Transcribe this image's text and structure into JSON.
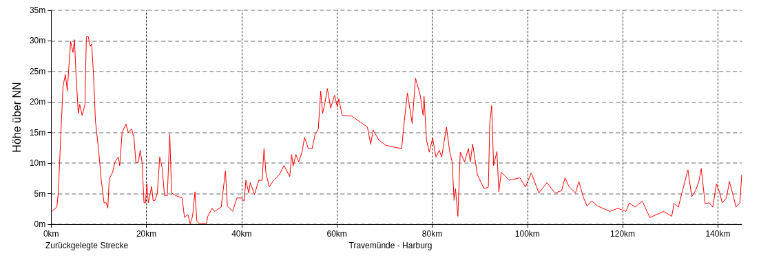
{
  "chart_data": {
    "type": "line",
    "title": "Travemünde - Harburg",
    "xlabel": "Zurückgelegte Strecke",
    "ylabel": "Höhe über NN",
    "xlim": [
      0,
      145
    ],
    "ylim": [
      0,
      35
    ],
    "xticks": [
      {
        "value": 0,
        "label": "0km"
      },
      {
        "value": 20,
        "label": "20km"
      },
      {
        "value": 40,
        "label": "40km"
      },
      {
        "value": 60,
        "label": "60km"
      },
      {
        "value": 80,
        "label": "80km"
      },
      {
        "value": 100,
        "label": "100km"
      },
      {
        "value": 120,
        "label": "120km"
      },
      {
        "value": 140,
        "label": "140km"
      }
    ],
    "yticks": [
      {
        "value": 0,
        "label": "0m"
      },
      {
        "value": 5,
        "label": "5m"
      },
      {
        "value": 10,
        "label": "10m"
      },
      {
        "value": 15,
        "label": "15m"
      },
      {
        "value": 20,
        "label": "20m"
      },
      {
        "value": 25,
        "label": "25m"
      },
      {
        "value": 30,
        "label": "30m"
      },
      {
        "value": 35,
        "label": "35m"
      }
    ],
    "grid": true,
    "marker": "none",
    "line_style": "solid",
    "x": [
      0,
      1.2,
      1.5,
      2.1,
      2.5,
      3.0,
      3.4,
      3.7,
      4.1,
      4.6,
      4.9,
      5.2,
      5.7,
      6.0,
      6.5,
      7.1,
      7.4,
      7.8,
      8.2,
      8.5,
      8.9,
      9.3,
      10.0,
      10.5,
      11.1,
      11.6,
      11.9,
      12.2,
      12.9,
      13.4,
      14.1,
      14.4,
      14.9,
      15.7,
      16.2,
      16.9,
      17.4,
      17.8,
      18.3,
      18.7,
      19.1,
      19.5,
      19.8,
      20.1,
      20.4,
      21.1,
      21.4,
      21.8,
      22.3,
      22.8,
      23.3,
      23.8,
      24.4,
      24.9,
      25.3,
      26.1,
      27.5,
      28.0,
      28.7,
      29.2,
      29.7,
      30.2,
      30.6,
      31.1,
      32.6,
      32.9,
      33.8,
      34.3,
      35.7,
      36.6,
      37.0,
      38.1,
      39.0,
      40.0,
      40.5,
      40.9,
      41.5,
      41.8,
      42.7,
      43.6,
      44.3,
      44.7,
      45.1,
      45.8,
      46.7,
      47.9,
      48.9,
      50.1,
      50.5,
      50.8,
      51.4,
      52.0,
      52.7,
      53.2,
      54.0,
      54.8,
      55.4,
      56.1,
      56.6,
      57.0,
      57.5,
      58.0,
      58.7,
      59.5,
      60.1,
      60.4,
      61.1,
      63.1,
      66.4,
      67.1,
      67.6,
      68.8,
      70.3,
      72.7,
      73.6,
      74.1,
      74.8,
      75.8,
      76.5,
      77.5,
      78.1,
      78.3,
      78.8,
      79.4,
      80.1,
      80.8,
      81.5,
      82.0,
      83.0,
      83.7,
      84.2,
      84.6,
      84.9,
      85.4,
      85.9,
      86.8,
      87.6,
      88.0,
      88.5,
      89.5,
      90.9,
      91.8,
      92.1,
      92.5,
      92.9,
      93.6,
      94.0,
      94.5,
      96.2,
      98.4,
      99.6,
      100.8,
      102.4,
      104.1,
      105.8,
      107.2,
      107.9,
      108.7,
      110.1,
      110.8,
      111.8,
      112.5,
      113.5,
      114.7,
      117.3,
      119.0,
      120.7,
      121.4,
      122.6,
      124.1,
      125.7,
      126.9,
      128.6,
      130.3,
      130.8,
      131.7,
      132.3,
      133.7,
      134.5,
      135.3,
      136.0,
      136.5,
      137.3,
      138.2,
      138.9,
      139.7,
      140.4,
      140.9,
      141.8,
      142.4,
      143.0,
      143.8,
      144.6,
      145.0
    ],
    "series": [
      {
        "color": "#ff0000",
        "values": [
          2.0,
          2.8,
          5.1,
          15.8,
          22.6,
          24.5,
          21.8,
          25.5,
          29.9,
          28.1,
          30.2,
          24.9,
          18.1,
          19.6,
          17.8,
          19.6,
          30.7,
          30.7,
          29.1,
          29.5,
          24.5,
          16.9,
          11.9,
          7.4,
          3.5,
          3.5,
          2.6,
          7.4,
          8.5,
          10.2,
          11.0,
          9.6,
          15.0,
          16.4,
          15.0,
          15.6,
          14.1,
          10.1,
          10.1,
          12.1,
          10.1,
          3.5,
          3.5,
          6.6,
          3.5,
          6.2,
          3.9,
          3.9,
          5.1,
          11.0,
          9.3,
          4.7,
          4.7,
          14.8,
          5.1,
          4.7,
          4.3,
          1.1,
          1.6,
          0.1,
          1.3,
          5.3,
          0.5,
          0.1,
          0.1,
          1.3,
          2.6,
          2.1,
          2.8,
          8.7,
          3.0,
          2.1,
          4.3,
          4.3,
          3.8,
          7.2,
          5.1,
          6.8,
          4.9,
          7.2,
          7.2,
          12.4,
          8.4,
          6.1,
          7.2,
          8.1,
          9.6,
          7.8,
          11.4,
          9.5,
          11.4,
          10.2,
          11.9,
          14.2,
          12.4,
          12.4,
          14.6,
          15.6,
          21.8,
          18.1,
          19.9,
          22.2,
          19.0,
          21.1,
          19.2,
          20.5,
          17.8,
          17.7,
          15.9,
          13.1,
          15.4,
          13.8,
          12.9,
          12.5,
          12.4,
          16.5,
          21.5,
          16.5,
          23.9,
          21.1,
          17.8,
          20.9,
          13.8,
          11.8,
          14.1,
          11.0,
          12.1,
          11.0,
          15.9,
          11.8,
          10.2,
          3.9,
          5.8,
          1.3,
          11.8,
          10.2,
          12.4,
          10.2,
          13.1,
          8.1,
          5.8,
          6.1,
          16.5,
          19.4,
          9.6,
          11.9,
          5.3,
          8.5,
          7.2,
          7.6,
          6.1,
          8.4,
          5.1,
          6.8,
          5.1,
          5.5,
          7.6,
          6.2,
          5.1,
          7.0,
          4.3,
          3.0,
          3.8,
          3.0,
          2.1,
          2.6,
          2.1,
          3.5,
          2.8,
          3.8,
          1.1,
          1.5,
          2.1,
          1.3,
          3.4,
          2.8,
          4.7,
          8.9,
          4.5,
          5.5,
          7.0,
          9.1,
          3.4,
          3.5,
          2.8,
          6.6,
          5.1,
          3.5,
          4.3,
          7.0,
          5.3,
          2.8,
          3.5,
          8.1
        ]
      }
    ]
  }
}
